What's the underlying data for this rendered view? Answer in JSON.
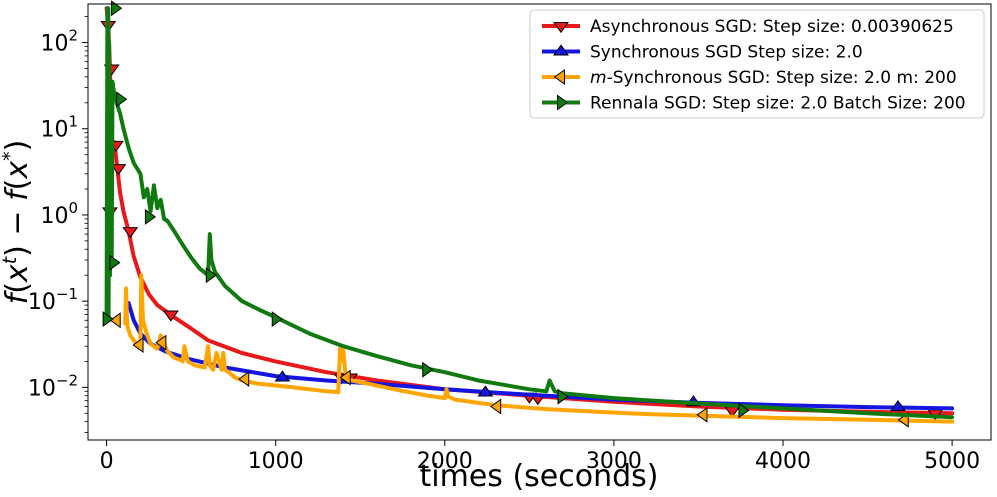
{
  "chart_data": {
    "type": "line",
    "title": "",
    "xlabel": "times (seconds)",
    "ylabel": "f(x^t) − f(x^*)",
    "xlim": [
      -110,
      5230
    ],
    "ylim": [
      0.00245,
      280
    ],
    "yscale": "log",
    "xticks": [
      0,
      1000,
      2000,
      3000,
      4000,
      5000
    ],
    "xtick_labels": [
      "0",
      "1000",
      "2000",
      "3000",
      "4000",
      "5000"
    ],
    "yticks": [
      0.01,
      0.1,
      1,
      10,
      100
    ],
    "ytick_labels": [
      {
        "base": "10",
        "exp": "−2"
      },
      {
        "base": "10",
        "exp": "−1"
      },
      {
        "base": "10",
        "exp": "0"
      },
      {
        "base": "10",
        "exp": "1"
      },
      {
        "base": "10",
        "exp": "2"
      }
    ],
    "legend_position": "top-right",
    "series": [
      {
        "name": "Asynchronous SGD: Step size: 0.00390625",
        "color": "#e8181b",
        "marker": "triangle-down",
        "x": [
          0,
          10,
          20,
          30,
          45,
          60,
          80,
          100,
          130,
          160,
          200,
          250,
          300,
          400,
          500,
          600,
          800,
          1000,
          1300,
          1600,
          2000,
          2500,
          3000,
          3500,
          4000,
          4500,
          5000
        ],
        "y": [
          250,
          160,
          50,
          6,
          7,
          4,
          1.8,
          1.1,
          0.65,
          0.33,
          0.19,
          0.12,
          0.09,
          0.065,
          0.048,
          0.035,
          0.025,
          0.02,
          0.015,
          0.012,
          0.0095,
          0.008,
          0.0068,
          0.006,
          0.0055,
          0.0052,
          0.005
        ],
        "marker_x": [
          10,
          20,
          30,
          55,
          70,
          140,
          380,
          1390,
          1440,
          2500,
          2550,
          3700,
          4900
        ],
        "marker_y": [
          160,
          1.1,
          50,
          6.5,
          3.5,
          0.65,
          0.07,
          0.013,
          0.013,
          0.0078,
          0.0075,
          0.0054,
          0.005
        ]
      },
      {
        "name": "Synchronous SGD Step size: 2.0",
        "color": "#1515e0",
        "marker": "triangle-up",
        "x": [
          130,
          160,
          200,
          260,
          350,
          500,
          700,
          1000,
          1300,
          1600,
          2000,
          2500,
          3000,
          3500,
          4000,
          4500,
          5000
        ],
        "y": [
          0.095,
          0.06,
          0.042,
          0.032,
          0.026,
          0.021,
          0.017,
          0.0135,
          0.012,
          0.011,
          0.0095,
          0.0082,
          0.0072,
          0.0066,
          0.0062,
          0.0059,
          0.0057
        ],
        "marker_x": [
          1040,
          2240,
          3470,
          4680
        ],
        "marker_y": [
          0.013,
          0.0087,
          0.0067,
          0.0059
        ]
      },
      {
        "name": "m-Synchronous  SGD: Step size: 2.0 m: 200",
        "color": "#ffa500",
        "marker": "triangle-left",
        "x": [
          110,
          115,
          120,
          125,
          140,
          160,
          190,
          200,
          205,
          215,
          240,
          260,
          300,
          320,
          360,
          380,
          400,
          430,
          450,
          460,
          480,
          520,
          580,
          600,
          610,
          630,
          650,
          680,
          690,
          700,
          720,
          760,
          800,
          900,
          1000,
          1100,
          1200,
          1300,
          1370,
          1380,
          1385,
          1400,
          1410,
          1420,
          1450,
          1550,
          1700,
          1900,
          2000,
          2010,
          2020,
          2060,
          2300,
          2600,
          2900,
          3200,
          3500,
          4000,
          4500,
          5000
        ],
        "y": [
          0.055,
          0.14,
          0.065,
          0.05,
          0.04,
          0.035,
          0.03,
          0.03,
          0.2,
          0.06,
          0.04,
          0.032,
          0.028,
          0.04,
          0.026,
          0.024,
          0.022,
          0.021,
          0.02,
          0.03,
          0.02,
          0.018,
          0.017,
          0.03,
          0.018,
          0.016,
          0.025,
          0.016,
          0.025,
          0.016,
          0.015,
          0.013,
          0.012,
          0.011,
          0.0105,
          0.01,
          0.0095,
          0.009,
          0.0088,
          0.028,
          0.02,
          0.027,
          0.016,
          0.013,
          0.012,
          0.011,
          0.0095,
          0.008,
          0.0075,
          0.0095,
          0.0078,
          0.0072,
          0.0062,
          0.0056,
          0.0052,
          0.0049,
          0.0047,
          0.0044,
          0.0042,
          0.004
        ],
        "marker_x": [
          60,
          195,
          330,
          820,
          1420,
          2310,
          3530,
          4720
        ],
        "marker_y": [
          0.06,
          0.031,
          0.033,
          0.0125,
          0.013,
          0.006,
          0.0048,
          0.0042
        ]
      },
      {
        "name": "Rennala SGD: Step size: 2.0 Batch Size: 200",
        "color": "#107a10",
        "marker": "triangle-right",
        "x": [
          0,
          5,
          10,
          12,
          15,
          20,
          25,
          30,
          35,
          45,
          60,
          80,
          100,
          130,
          160,
          200,
          220,
          240,
          260,
          280,
          300,
          320,
          340,
          360,
          400,
          450,
          500,
          550,
          600,
          610,
          620,
          640,
          700,
          800,
          900,
          1000,
          1200,
          1400,
          1600,
          1800,
          2000,
          2200,
          2500,
          2600,
          2620,
          2650,
          2700,
          3000,
          3500,
          4000,
          4500,
          5000
        ],
        "y": [
          0.062,
          250,
          250,
          0.06,
          100,
          0.2,
          10,
          0.3,
          35,
          25,
          20,
          15,
          10,
          6,
          4,
          3,
          1.6,
          2,
          1.1,
          2.2,
          1.2,
          1.5,
          0.9,
          0.85,
          0.65,
          0.45,
          0.32,
          0.24,
          0.2,
          0.6,
          0.3,
          0.22,
          0.15,
          0.1,
          0.08,
          0.065,
          0.042,
          0.03,
          0.023,
          0.018,
          0.015,
          0.012,
          0.0095,
          0.009,
          0.012,
          0.009,
          0.0085,
          0.0075,
          0.0065,
          0.0057,
          0.005,
          0.0045
        ],
        "marker_x": [
          0,
          40,
          50,
          80,
          250,
          610,
          1000,
          1890,
          2690,
          3760
        ],
        "marker_y": [
          0.062,
          0.28,
          250,
          22,
          0.95,
          0.2,
          0.062,
          0.016,
          0.0078,
          0.0054
        ]
      }
    ]
  }
}
